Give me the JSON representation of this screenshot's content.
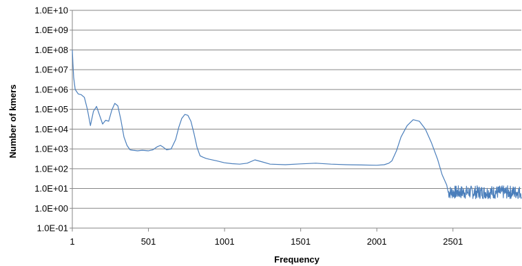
{
  "chart_data": {
    "type": "line",
    "title": "",
    "xlabel": "Frequency",
    "ylabel": "Number of kmers",
    "y_scale": "log",
    "ylim": [
      0.1,
      10000000000
    ],
    "xlim": [
      1,
      2950
    ],
    "grid": "horizontal",
    "legend": "none",
    "y_tick_labels": [
      "1.0E-01",
      "1.0E+00",
      "1.0E+01",
      "1.0E+02",
      "1.0E+03",
      "1.0E+04",
      "1.0E+05",
      "1.0E+06",
      "1.0E+07",
      "1.0E+08",
      "1.0E+09",
      "1.0E+10"
    ],
    "x_tick_labels": [
      "1",
      "501",
      "1001",
      "1501",
      "2001",
      "2501"
    ],
    "x_ticks": [
      1,
      501,
      1001,
      1501,
      2001,
      2501
    ],
    "series": [
      {
        "color": "#4a7ebb",
        "x": [
          1,
          5,
          10,
          20,
          40,
          60,
          80,
          100,
          120,
          140,
          160,
          180,
          200,
          220,
          240,
          260,
          280,
          300,
          320,
          340,
          360,
          380,
          400,
          430,
          460,
          500,
          530,
          560,
          580,
          600,
          620,
          650,
          680,
          700,
          720,
          740,
          760,
          780,
          800,
          820,
          840,
          860,
          880,
          900,
          950,
          1000,
          1050,
          1100,
          1150,
          1200,
          1250,
          1300,
          1400,
          1500,
          1600,
          1700,
          1800,
          1900,
          2000,
          2050,
          2080,
          2100,
          2130,
          2160,
          2200,
          2240,
          2280,
          2320,
          2360,
          2400,
          2430,
          2460,
          2480,
          2500,
          2550,
          2600,
          2650,
          2700,
          2750,
          2800,
          2850,
          2900,
          2950
        ],
        "y": [
          100000000,
          20000000,
          4000000,
          1000000,
          600000,
          550000,
          400000,
          100000,
          15000,
          80000,
          140000,
          50000,
          18000,
          28000,
          25000,
          90000,
          200000,
          150000,
          30000,
          4000,
          1500,
          900,
          850,
          800,
          850,
          800,
          900,
          1300,
          1500,
          1200,
          900,
          1000,
          3000,
          12000,
          35000,
          55000,
          50000,
          25000,
          6000,
          1200,
          450,
          380,
          330,
          300,
          250,
          200,
          180,
          170,
          190,
          280,
          220,
          170,
          160,
          175,
          190,
          170,
          160,
          155,
          150,
          160,
          190,
          250,
          800,
          4000,
          15000,
          30000,
          25000,
          10000,
          2000,
          300,
          50,
          15,
          8,
          6,
          5,
          5,
          5,
          5,
          5,
          6,
          6,
          7,
          8
        ],
        "tail_noise": {
          "x_start": 2470,
          "y_low": 3,
          "y_high": 14
        }
      }
    ]
  }
}
